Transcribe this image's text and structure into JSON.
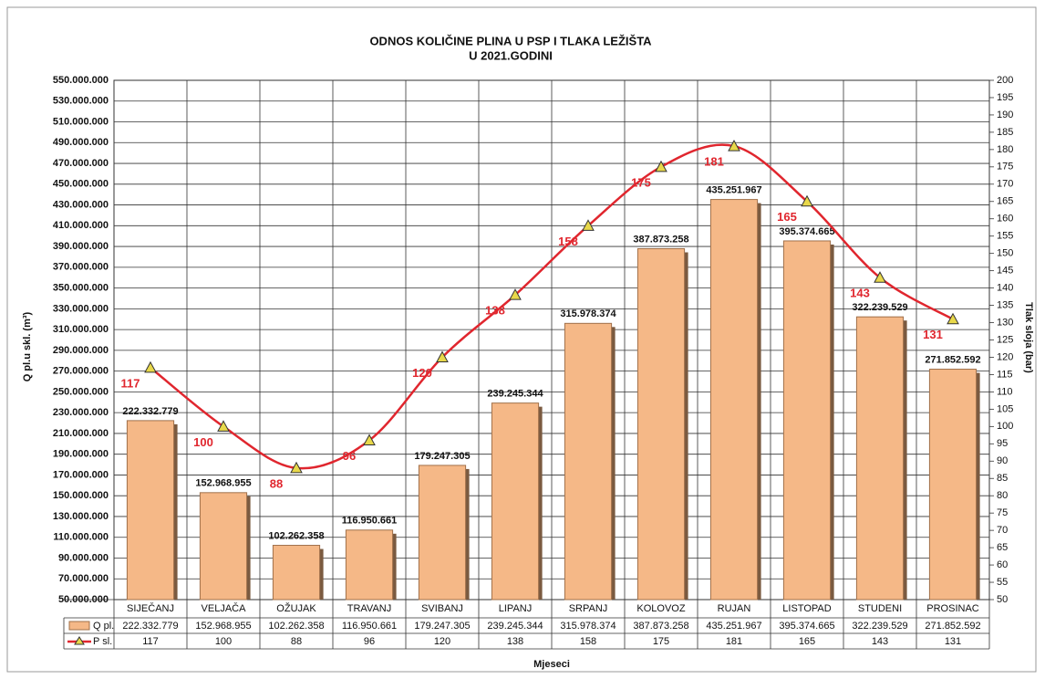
{
  "chart_data": {
    "type": "bar-line",
    "title": "ODNOS KOLIČINE PLINA U PSP I TLAKA LEŽIŠTA",
    "subtitle": "U 2021.GODINI",
    "y_label": "Q pl.u skl. (m³)",
    "y2_label": "Tlak sloja (bar)",
    "x_label": "Mjeseci",
    "categories": [
      "SIJEČANJ",
      "VELJAČA",
      "OŽUJAK",
      "TRAVANJ",
      "SVIBANJ",
      "LIPANJ",
      "SRPANJ",
      "KOLOVOZ",
      "RUJAN",
      "LISTOPAD",
      "STUDENI",
      "PROSINAC"
    ],
    "series": [
      {
        "name": "Q pl.",
        "color": "#f5b887",
        "type": "bar",
        "values": [
          222332779,
          152968955,
          102262358,
          116950661,
          179247305,
          239245344,
          315978374,
          387873258,
          435251967,
          395374665,
          322239529,
          271852592
        ],
        "value_labels": [
          "222.332.779",
          "152.968.955",
          "102.262.358",
          "116.950.661",
          "179.247.305",
          "239.245.344",
          "315.978.374",
          "387.873.258",
          "435.251.967",
          "395.374.665",
          "322.239.529",
          "271.852.592"
        ]
      },
      {
        "name": "P sl.",
        "color": "#e0262e",
        "type": "line",
        "axis": "y2",
        "marker_color": "#e8d84a",
        "values": [
          117,
          100,
          88,
          96,
          120,
          138,
          158,
          175,
          181,
          165,
          143,
          131
        ]
      }
    ],
    "ylim": [
      50000000,
      550000000
    ],
    "yticks": [
      {
        "value": 50000000,
        "label": "50.000.000"
      },
      {
        "value": 70000000,
        "label": "70.000.000"
      },
      {
        "value": 90000000,
        "label": "90.000.000"
      },
      {
        "value": 110000000,
        "label": "110.000.000"
      },
      {
        "value": 130000000,
        "label": "130.000.000"
      },
      {
        "value": 150000000,
        "label": "150.000.000"
      },
      {
        "value": 170000000,
        "label": "170.000.000"
      },
      {
        "value": 190000000,
        "label": "190.000.000"
      },
      {
        "value": 210000000,
        "label": "210.000.000"
      },
      {
        "value": 230000000,
        "label": "230.000.000"
      },
      {
        "value": 250000000,
        "label": "250.000.000"
      },
      {
        "value": 270000000,
        "label": "270.000.000"
      },
      {
        "value": 290000000,
        "label": "290.000.000"
      },
      {
        "value": 310000000,
        "label": "310.000.000"
      },
      {
        "value": 330000000,
        "label": "330.000.000"
      },
      {
        "value": 350000000,
        "label": "350.000.000"
      },
      {
        "value": 370000000,
        "label": "370.000.000"
      },
      {
        "value": 390000000,
        "label": "390.000.000"
      },
      {
        "value": 410000000,
        "label": "410.000.000"
      },
      {
        "value": 430000000,
        "label": "430.000.000"
      },
      {
        "value": 450000000,
        "label": "450.000.000"
      },
      {
        "value": 470000000,
        "label": "470.000.000"
      },
      {
        "value": 490000000,
        "label": "490.000.000"
      },
      {
        "value": 510000000,
        "label": "510.000.000"
      },
      {
        "value": 530000000,
        "label": "530.000.000"
      },
      {
        "value": 550000000,
        "label": "550.000.000"
      }
    ],
    "y2lim": [
      50,
      200
    ],
    "y2ticks": [
      50,
      55,
      60,
      65,
      70,
      75,
      80,
      85,
      90,
      95,
      100,
      105,
      110,
      115,
      120,
      125,
      130,
      135,
      140,
      145,
      150,
      155,
      160,
      165,
      170,
      175,
      180,
      185,
      190,
      195,
      200
    ],
    "grid": true
  }
}
